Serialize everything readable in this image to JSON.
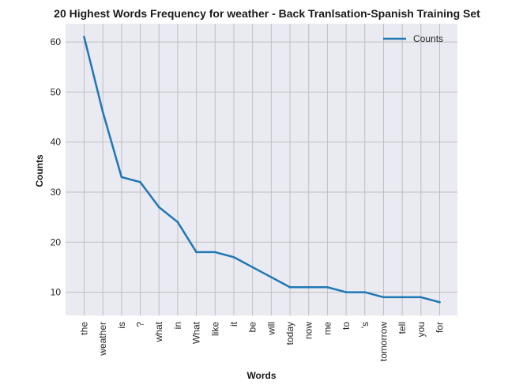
{
  "chart_data": {
    "type": "line",
    "title": "20 Highest Words Frequency for weather - Back Tranlsation-Spanish Training Set",
    "xlabel": "Words",
    "ylabel": "Counts",
    "categories": [
      "the",
      "weather",
      "is",
      "?",
      "what",
      "in",
      "What",
      "like",
      "it",
      "be",
      "will",
      "today",
      "now",
      "me",
      "to",
      "'s",
      "tomorrow",
      "tell",
      "you",
      "for"
    ],
    "series": [
      {
        "name": "Counts",
        "values": [
          61,
          46,
          33,
          32,
          27,
          24,
          18,
          18,
          17,
          15,
          13,
          11,
          11,
          11,
          10,
          10,
          9,
          9,
          9,
          8
        ]
      }
    ],
    "ylim": [
      5.35,
      63.65
    ],
    "yticks": [
      10,
      20,
      30,
      40,
      50,
      60
    ],
    "grid": true,
    "legend": "top-right",
    "colors": {
      "line": "#1f77b4",
      "plot_bg": "#eaeaf2",
      "grid": "#bfbfbf"
    }
  }
}
